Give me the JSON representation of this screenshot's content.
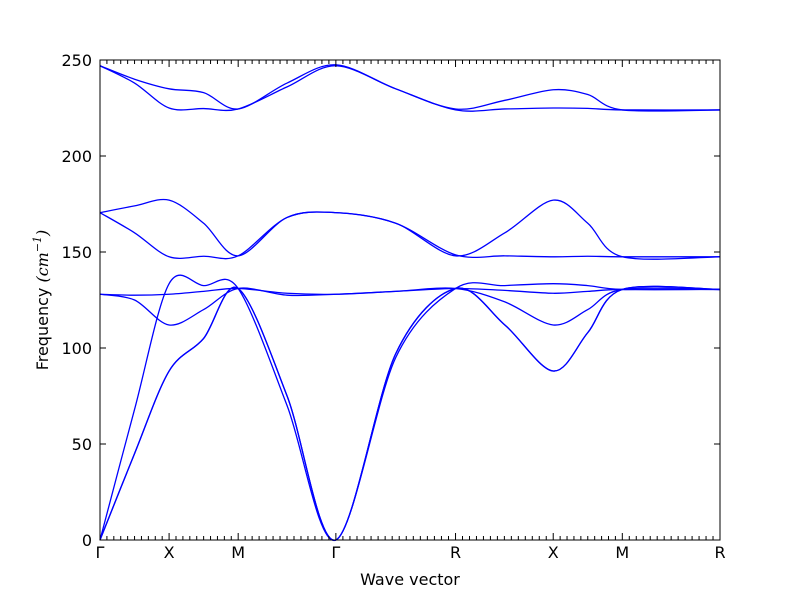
{
  "chart_data": {
    "type": "line",
    "xlabel": "Wave vector",
    "ylabel": "Frequency",
    "ylabel_unit": "(cm",
    "ylabel_exp": "−1",
    "ylabel_close": ")",
    "ylim": [
      0,
      250
    ],
    "yticks": [
      0,
      50,
      100,
      150,
      200,
      250
    ],
    "grid": false,
    "line_color": "#0000ff",
    "high_symmetry_points": [
      {
        "label": "Γ",
        "x": 0.0
      },
      {
        "label": "X",
        "x": 0.5
      },
      {
        "label": "M",
        "x": 1.0
      },
      {
        "label": "Γ",
        "x": 1.707
      },
      {
        "label": "R",
        "x": 2.573
      },
      {
        "label": "X",
        "x": 3.28
      },
      {
        "label": "M",
        "x": 3.78
      },
      {
        "label": "R",
        "x": 4.487
      }
    ],
    "xlim": [
      0,
      4.487
    ],
    "series": [
      {
        "values": [
          [
            0,
            247
          ],
          [
            0.25,
            238
          ],
          [
            0.5,
            225
          ],
          [
            0.75,
            224.7
          ],
          [
            1.0,
            224.5
          ],
          [
            1.354,
            236
          ],
          [
            1.707,
            247
          ],
          [
            2.14,
            235
          ],
          [
            2.573,
            224
          ],
          [
            2.93,
            224.5
          ],
          [
            3.28,
            225
          ],
          [
            3.53,
            224.8
          ],
          [
            3.78,
            224
          ],
          [
            4.487,
            224
          ]
        ]
      },
      {
        "values": [
          [
            0,
            247
          ],
          [
            0.25,
            240
          ],
          [
            0.5,
            235
          ],
          [
            0.75,
            233
          ],
          [
            1.0,
            224.5
          ],
          [
            1.354,
            238
          ],
          [
            1.707,
            247.5
          ],
          [
            2.14,
            235
          ],
          [
            2.573,
            224.5
          ],
          [
            2.93,
            229
          ],
          [
            3.28,
            234.5
          ],
          [
            3.53,
            232
          ],
          [
            3.78,
            224
          ],
          [
            4.487,
            224
          ]
        ]
      },
      {
        "values": [
          [
            0,
            170.5
          ],
          [
            0.25,
            160
          ],
          [
            0.5,
            147.5
          ],
          [
            0.75,
            147.8
          ],
          [
            1.0,
            148
          ],
          [
            1.354,
            168
          ],
          [
            1.707,
            170.5
          ],
          [
            2.14,
            165
          ],
          [
            2.573,
            148.5
          ],
          [
            2.93,
            148
          ],
          [
            3.28,
            147.5
          ],
          [
            3.53,
            147.8
          ],
          [
            3.78,
            147.5
          ],
          [
            4.487,
            147.5
          ]
        ]
      },
      {
        "values": [
          [
            0,
            170.5
          ],
          [
            0.25,
            174
          ],
          [
            0.5,
            177
          ],
          [
            0.75,
            165
          ],
          [
            1.0,
            148
          ],
          [
            1.354,
            168
          ],
          [
            1.707,
            170.5
          ],
          [
            2.14,
            165
          ],
          [
            2.573,
            148
          ],
          [
            2.93,
            160
          ],
          [
            3.28,
            177
          ],
          [
            3.53,
            165
          ],
          [
            3.78,
            147.5
          ],
          [
            4.487,
            147.5
          ]
        ]
      },
      {
        "values": [
          [
            0,
            128
          ],
          [
            0.25,
            127.5
          ],
          [
            0.5,
            128
          ],
          [
            0.75,
            129.5
          ],
          [
            1.0,
            131
          ],
          [
            1.354,
            128.5
          ],
          [
            1.707,
            128
          ],
          [
            2.14,
            129.5
          ],
          [
            2.573,
            131
          ],
          [
            2.93,
            130
          ],
          [
            3.28,
            128.5
          ],
          [
            3.53,
            129.5
          ],
          [
            3.78,
            130.5
          ],
          [
            4.487,
            130.5
          ]
        ]
      },
      {
        "values": [
          [
            0,
            128
          ],
          [
            0.25,
            125
          ],
          [
            0.5,
            112
          ],
          [
            0.75,
            120
          ],
          [
            1.0,
            131
          ],
          [
            1.354,
            127.5
          ],
          [
            1.707,
            128
          ],
          [
            2.14,
            129.5
          ],
          [
            2.573,
            131
          ],
          [
            2.93,
            124
          ],
          [
            3.28,
            112
          ],
          [
            3.53,
            120
          ],
          [
            3.78,
            130.5
          ],
          [
            4.487,
            130.5
          ]
        ]
      },
      {
        "values": [
          [
            0,
            0
          ],
          [
            0.25,
            68
          ],
          [
            0.5,
            133.5
          ],
          [
            0.75,
            132.5
          ],
          [
            1.0,
            131
          ],
          [
            1.354,
            70
          ],
          [
            1.707,
            0
          ],
          [
            2.14,
            95
          ],
          [
            2.573,
            131
          ],
          [
            2.93,
            132.5
          ],
          [
            3.28,
            133.5
          ],
          [
            3.53,
            132.5
          ],
          [
            3.78,
            130.5
          ],
          [
            4.487,
            130.5
          ]
        ]
      },
      {
        "values": [
          [
            0,
            0
          ],
          [
            0.25,
            45
          ],
          [
            0.5,
            88
          ],
          [
            0.75,
            105
          ],
          [
            1.0,
            131
          ],
          [
            1.354,
            75
          ],
          [
            1.707,
            0
          ],
          [
            2.14,
            97
          ],
          [
            2.573,
            131
          ],
          [
            2.93,
            112
          ],
          [
            3.28,
            88
          ],
          [
            3.53,
            108
          ],
          [
            3.78,
            130.5
          ],
          [
            4.487,
            130.5
          ]
        ]
      },
      {
        "values": [
          [
            0,
            0
          ],
          [
            0.25,
            45
          ],
          [
            0.5,
            88
          ],
          [
            0.75,
            105
          ],
          [
            1.0,
            131
          ],
          [
            1.354,
            75
          ],
          [
            1.707,
            0
          ],
          [
            2.14,
            97
          ],
          [
            2.573,
            131
          ],
          [
            2.93,
            112
          ],
          [
            3.28,
            88
          ],
          [
            3.53,
            108
          ],
          [
            3.78,
            130.5
          ],
          [
            4.487,
            130.5
          ]
        ]
      }
    ]
  }
}
